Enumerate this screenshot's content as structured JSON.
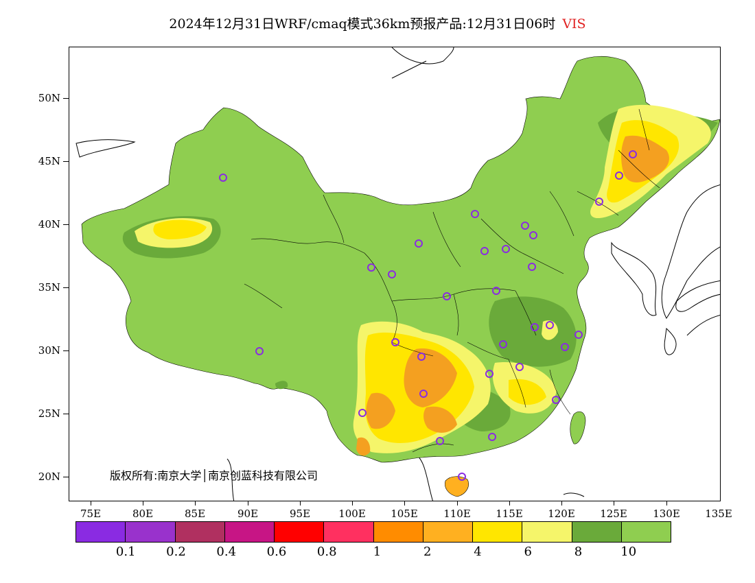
{
  "title": {
    "main": "2024年12月31日WRF/cmaq模式36km预报产品:12月31日06时",
    "variable": "VIS"
  },
  "axes": {
    "lat_labels": [
      "50N",
      "45N",
      "40N",
      "35N",
      "30N",
      "25N",
      "20N"
    ],
    "lon_labels": [
      "75E",
      "80E",
      "85E",
      "90E",
      "95E",
      "100E",
      "105E",
      "110E",
      "115E",
      "120E",
      "125E",
      "130E",
      "135E"
    ]
  },
  "copyright": "版权所有:南京大学│南京创蓝科技有限公司",
  "colorbar": {
    "colors": [
      "#8a2be2",
      "#9932cc",
      "#b03060",
      "#c71585",
      "#ff0000",
      "#ff3060",
      "#ff8c00",
      "#ffb020",
      "#ffe600",
      "#f5f56a",
      "#6aaa3a",
      "#8fce50"
    ],
    "labels": [
      "0.1",
      "0.2",
      "0.4",
      "0.6",
      "0.8",
      "1",
      "2",
      "4",
      "6",
      "8",
      "10"
    ]
  },
  "map": {
    "land_colors": {
      "clear": "#8fce50",
      "dark_green": "#6aaa3a",
      "light_yellow": "#f5f56a",
      "yellow": "#ffe600",
      "orange": "#ffb020",
      "dark_orange": "#f4a020"
    },
    "station_marker_color": "#8a2be2"
  }
}
